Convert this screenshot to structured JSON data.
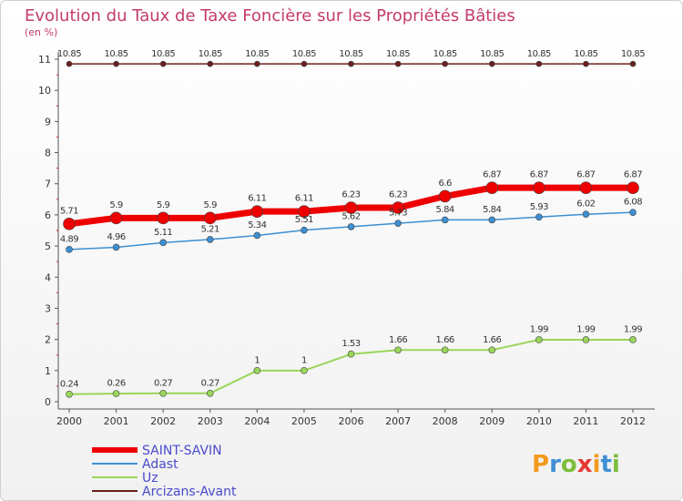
{
  "chart_data": {
    "type": "line",
    "title": "Evolution du Taux de Taxe Foncière sur les Propriétés Bâties",
    "subtitle": "(en %)",
    "x": [
      "2000",
      "2001",
      "2002",
      "2003",
      "2004",
      "2005",
      "2006",
      "2007",
      "2008",
      "2009",
      "2010",
      "2011",
      "2012"
    ],
    "y_ticks": [
      "0",
      "1",
      "2",
      "3",
      "4",
      "5",
      "6",
      "7",
      "8",
      "9",
      "10",
      "11"
    ],
    "ylim": [
      0,
      11
    ],
    "grid": false,
    "legend_position": "bottom-left",
    "series": [
      {
        "name": "SAINT-SAVIN",
        "color": "#ee0000",
        "values": [
          5.71,
          5.9,
          5.9,
          5.9,
          6.11,
          6.11,
          6.23,
          6.23,
          6.6,
          6.87,
          6.87,
          6.87,
          6.87
        ],
        "labels": [
          "5.71",
          "5.9",
          "5.9",
          "5.9",
          "6.11",
          "6.11",
          "6.23",
          "6.23",
          "6.6",
          "6.87",
          "6.87",
          "6.87",
          "6.87"
        ]
      },
      {
        "name": "Adast",
        "color": "#3d8fd1",
        "values": [
          4.89,
          4.96,
          5.11,
          5.21,
          5.34,
          5.51,
          5.62,
          5.73,
          5.84,
          5.84,
          5.93,
          6.02,
          6.08
        ],
        "labels": [
          "4.89",
          "4.96",
          "5.11",
          "5.21",
          "5.34",
          "5.51",
          "5.62",
          "5.73",
          "5.84",
          "5.84",
          "5.93",
          "6.02",
          "6.08"
        ]
      },
      {
        "name": "Uz",
        "color": "#9ad65a",
        "values": [
          0.24,
          0.26,
          0.27,
          0.27,
          1,
          1,
          1.53,
          1.66,
          1.66,
          1.66,
          1.99,
          1.99,
          1.99
        ],
        "labels": [
          "0.24",
          "0.26",
          "0.27",
          "0.27",
          "1",
          "1",
          "1.53",
          "1.66",
          "1.66",
          "1.66",
          "1.99",
          "1.99",
          "1.99"
        ]
      },
      {
        "name": "Arcizans-Avant",
        "color": "#6b1f1f",
        "values": [
          10.85,
          10.85,
          10.85,
          10.85,
          10.85,
          10.85,
          10.85,
          10.85,
          10.85,
          10.85,
          10.85,
          10.85,
          10.85
        ],
        "labels": [
          "10.85",
          "10.85",
          "10.85",
          "10.85",
          "10.85",
          "10.85",
          "10.85",
          "10.85",
          "10.85",
          "10.85",
          "10.85",
          "10.85",
          "10.85"
        ]
      }
    ]
  },
  "logo": {
    "letters": [
      "P",
      "r",
      "o",
      "x",
      "i",
      "t",
      "i"
    ],
    "colors": [
      "#f39a1d",
      "#3f90d6",
      "#7dbd3b",
      "#e53935",
      "#f39a1d",
      "#3f90d6",
      "#7dbd3b"
    ]
  }
}
